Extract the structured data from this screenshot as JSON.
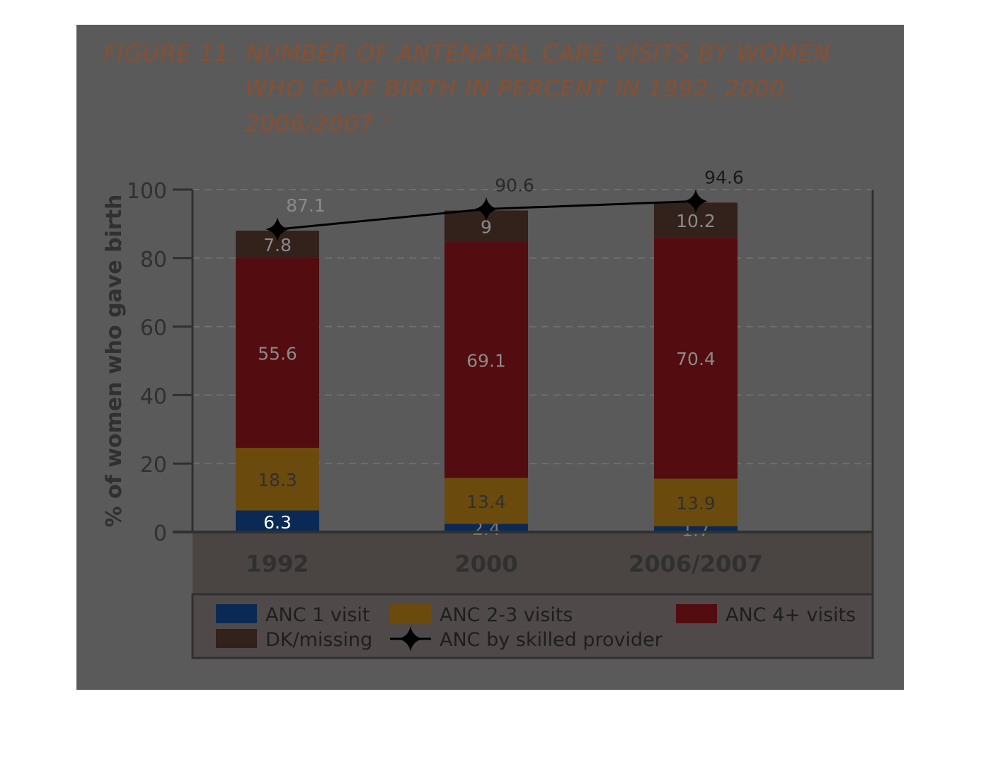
{
  "title_lines": [
    "FIGURE 11: NUMBER OF ANTENATAL CARE VISITS  BY WOMEN",
    "WHO GAVE BIRTH IN PERCENT IN 1992, 2000,",
    "2006/2007 ⁷"
  ],
  "chart_data": {
    "type": "bar",
    "stacked": true,
    "title": "FIGURE 11: NUMBER OF ANTENATAL CARE VISITS  BY WOMEN WHO GAVE BIRTH IN PERCENT IN 1992, 2000, 2006/2007 ⁷",
    "ylabel": "% of women who gave birth",
    "xlabel": "",
    "ylim": [
      0,
      100
    ],
    "yticks": [
      0,
      20,
      40,
      60,
      80,
      100
    ],
    "grid": true,
    "legend_position": "bottom",
    "categories": [
      "1992",
      "2000",
      "2006/2007"
    ],
    "series": [
      {
        "name": "ANC 1 visit",
        "color": "#0a2a55",
        "values": [
          6.3,
          2.4,
          1.7
        ]
      },
      {
        "name": "ANC 2-3 visits",
        "color": "#6b4a0d",
        "values": [
          18.3,
          13.4,
          13.9
        ]
      },
      {
        "name": "ANC 4+ visits",
        "color": "#530c10",
        "values": [
          55.6,
          69.1,
          70.4
        ]
      },
      {
        "name": "DK/missing",
        "color": "#33211c",
        "values": [
          7.8,
          9,
          10.2
        ]
      }
    ],
    "line_series": {
      "name": "ANC by skilled provider",
      "color": "#000000",
      "values": [
        87.1,
        90.6,
        94.6
      ]
    }
  }
}
